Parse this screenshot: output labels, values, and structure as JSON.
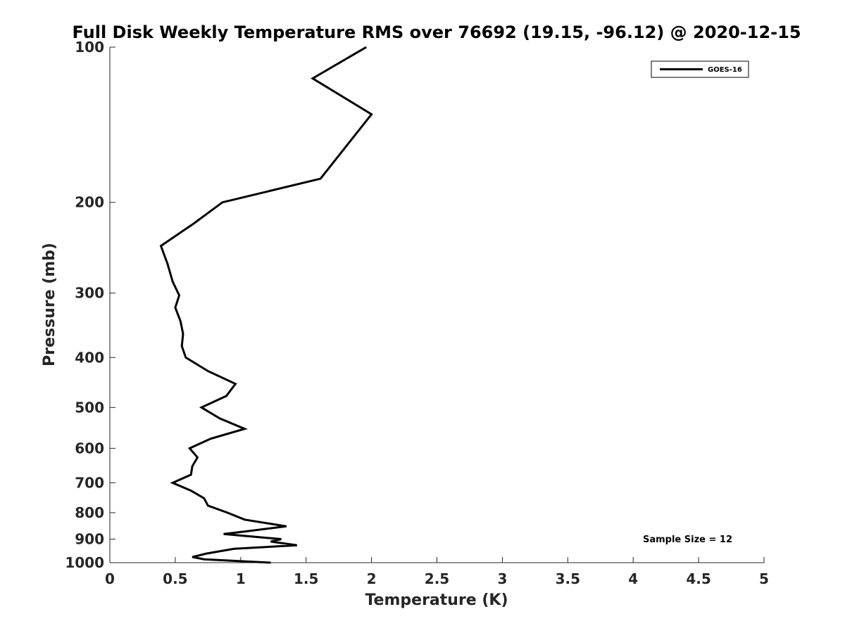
{
  "chart_data": {
    "type": "line",
    "title": "Full Disk Weekly Temperature RMS over 76692 (19.15, -96.12) @ 2020-12-15",
    "xlabel": "Temperature (K)",
    "ylabel": "Pressure (mb)",
    "xlim": [
      0,
      5
    ],
    "ylim": [
      100,
      1000
    ],
    "y_scale": "log",
    "y_reversed": true,
    "x_ticks": [
      "0",
      "0.5",
      "1",
      "1.5",
      "2",
      "2.5",
      "3",
      "3.5",
      "4",
      "4.5",
      "5"
    ],
    "y_ticks": [
      "100",
      "200",
      "300",
      "400",
      "500",
      "600",
      "700",
      "800",
      "900",
      "1000"
    ],
    "grid": false,
    "legend_position": "top-right",
    "annotation": "Sample Size = 12",
    "series": [
      {
        "name": "GOES-16",
        "color": "#000000",
        "points": [
          [
            1.96,
            100
          ],
          [
            1.55,
            115
          ],
          [
            2.0,
            135
          ],
          [
            1.61,
            180
          ],
          [
            0.86,
            200
          ],
          [
            0.64,
            220
          ],
          [
            0.39,
            243
          ],
          [
            0.44,
            263
          ],
          [
            0.48,
            285
          ],
          [
            0.53,
            303
          ],
          [
            0.5,
            320
          ],
          [
            0.54,
            340
          ],
          [
            0.56,
            360
          ],
          [
            0.55,
            380
          ],
          [
            0.58,
            400
          ],
          [
            0.75,
            425
          ],
          [
            0.96,
            450
          ],
          [
            0.89,
            475
          ],
          [
            0.7,
            500
          ],
          [
            0.84,
            525
          ],
          [
            1.03,
            550
          ],
          [
            0.77,
            575
          ],
          [
            0.61,
            600
          ],
          [
            0.67,
            625
          ],
          [
            0.63,
            650
          ],
          [
            0.62,
            675
          ],
          [
            0.48,
            700
          ],
          [
            0.62,
            725
          ],
          [
            0.72,
            750
          ],
          [
            0.75,
            775
          ],
          [
            0.9,
            800
          ],
          [
            1.03,
            825
          ],
          [
            1.35,
            850
          ],
          [
            1.03,
            870
          ],
          [
            0.87,
            880
          ],
          [
            1.31,
            900
          ],
          [
            1.23,
            910
          ],
          [
            1.43,
            925
          ],
          [
            0.95,
            940
          ],
          [
            0.74,
            960
          ],
          [
            0.63,
            975
          ],
          [
            0.72,
            985
          ],
          [
            1.23,
            1000
          ]
        ]
      }
    ]
  }
}
